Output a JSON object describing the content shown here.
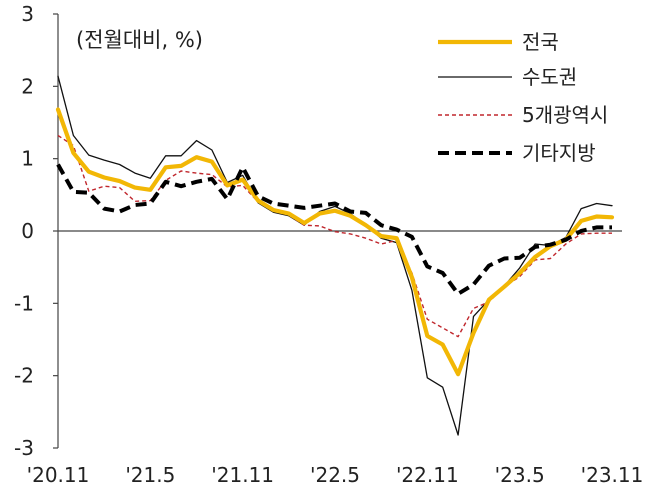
{
  "chart_data": {
    "type": "line",
    "title": "",
    "unit_label": "(전월대비, %)",
    "xlabel": "",
    "ylabel": "",
    "ylim": [
      -3,
      3
    ],
    "yticks": [
      -3,
      -2,
      -1,
      0,
      1,
      2,
      3
    ],
    "grid": false,
    "legend_position": "top-right",
    "x": [
      "'20.11",
      "'20.12",
      "'21.1",
      "'21.2",
      "'21.3",
      "'21.4",
      "'21.5",
      "'21.6",
      "'21.7",
      "'21.8",
      "'21.9",
      "'21.10",
      "'21.11",
      "'21.12",
      "'22.1",
      "'22.2",
      "'22.3",
      "'22.4",
      "'22.5",
      "'22.6",
      "'22.7",
      "'22.8",
      "'22.9",
      "'22.10",
      "'22.11",
      "'22.12",
      "'23.1",
      "'23.2",
      "'23.3",
      "'23.4",
      "'23.5",
      "'23.6",
      "'23.7",
      "'23.8",
      "'23.9",
      "'23.10",
      "'23.11"
    ],
    "xtick_labels": [
      "'20.11",
      "'21.5",
      "'21.11",
      "'22.5",
      "'22.11",
      "'23.5",
      "'23.11"
    ],
    "xtick_indices": [
      0,
      6,
      12,
      18,
      24,
      30,
      36
    ],
    "series": [
      {
        "name": "전국",
        "color": "#F2B705",
        "style": "solid-thick",
        "values": [
          1.68,
          1.08,
          0.82,
          0.74,
          0.69,
          0.6,
          0.57,
          0.88,
          0.9,
          1.02,
          0.96,
          0.63,
          0.71,
          0.42,
          0.29,
          0.24,
          0.11,
          0.24,
          0.28,
          0.21,
          0.08,
          -0.07,
          -0.1,
          -0.64,
          -1.45,
          -1.57,
          -1.98,
          -1.41,
          -0.95,
          -0.77,
          -0.58,
          -0.36,
          -0.21,
          -0.12,
          0.14,
          0.2,
          0.19
        ]
      },
      {
        "name": "수도권",
        "color": "#111111",
        "style": "solid-thin",
        "values": [
          2.14,
          1.32,
          1.05,
          0.98,
          0.92,
          0.8,
          0.73,
          1.04,
          1.04,
          1.25,
          1.12,
          0.67,
          0.77,
          0.39,
          0.26,
          0.21,
          0.08,
          0.27,
          0.34,
          0.24,
          0.08,
          -0.1,
          -0.16,
          -0.82,
          -2.03,
          -2.16,
          -2.82,
          -1.18,
          -0.95,
          -0.76,
          -0.51,
          -0.18,
          -0.2,
          -0.09,
          0.31,
          0.38,
          0.35
        ]
      },
      {
        "name": "5개광역시",
        "color": "#C0272D",
        "style": "dashed-thin",
        "values": [
          1.32,
          1.18,
          0.55,
          0.62,
          0.6,
          0.41,
          0.42,
          0.7,
          0.83,
          0.8,
          0.78,
          0.61,
          0.63,
          0.4,
          0.3,
          0.22,
          0.08,
          0.07,
          -0.01,
          -0.04,
          -0.1,
          -0.18,
          -0.13,
          -0.58,
          -1.22,
          -1.34,
          -1.46,
          -1.07,
          -0.98,
          -0.77,
          -0.63,
          -0.4,
          -0.38,
          -0.18,
          -0.04,
          -0.03,
          -0.03
        ]
      },
      {
        "name": "기타지방",
        "color": "#000000",
        "style": "dashed-thick",
        "values": [
          0.92,
          0.54,
          0.53,
          0.31,
          0.27,
          0.36,
          0.38,
          0.68,
          0.62,
          0.68,
          0.72,
          0.44,
          0.88,
          0.48,
          0.38,
          0.35,
          0.32,
          0.35,
          0.38,
          0.27,
          0.25,
          0.08,
          0.02,
          -0.08,
          -0.49,
          -0.58,
          -0.87,
          -0.74,
          -0.48,
          -0.38,
          -0.37,
          -0.22,
          -0.19,
          -0.12,
          0.0,
          0.05,
          0.05
        ]
      }
    ]
  }
}
